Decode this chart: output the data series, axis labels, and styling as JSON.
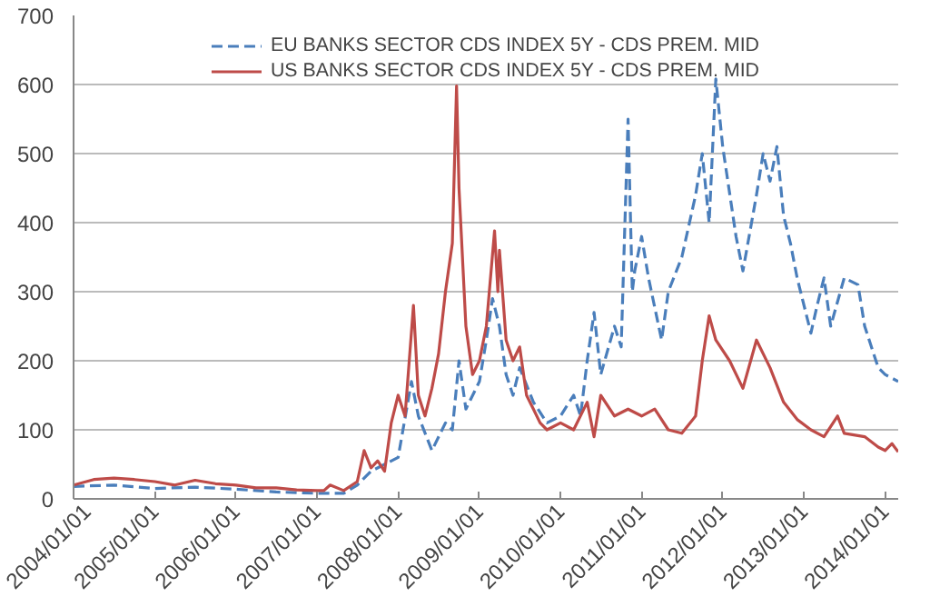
{
  "chart_data": {
    "type": "line",
    "ylim": [
      0,
      700
    ],
    "yticks": [
      0,
      100,
      200,
      300,
      400,
      500,
      600,
      700
    ],
    "xlim": [
      "2004-01-01",
      "2014-03-01"
    ],
    "xticks": [
      {
        "value": "2004-01-01",
        "label": "2004/01/01"
      },
      {
        "value": "2005-01-01",
        "label": "2005/01/01"
      },
      {
        "value": "2006-01-01",
        "label": "2006/01/01"
      },
      {
        "value": "2007-01-01",
        "label": "2007/01/01"
      },
      {
        "value": "2008-01-01",
        "label": "2008/01/01"
      },
      {
        "value": "2009-01-01",
        "label": "2009/01/01"
      },
      {
        "value": "2010-01-01",
        "label": "2010/01/01"
      },
      {
        "value": "2011-01-01",
        "label": "2011/01/01"
      },
      {
        "value": "2012-01-01",
        "label": "2012/01/01"
      },
      {
        "value": "2013-01-01",
        "label": "2013/01/01"
      },
      {
        "value": "2014-01-01",
        "label": "2014/01/01"
      }
    ],
    "grid": "y",
    "legend": "top",
    "marker": "none",
    "series": [
      {
        "name": "EU BANKS SECTOR CDS INDEX 5Y - CDS PREM. MID",
        "color": "#4a7ebb",
        "line_style": "dashed",
        "x": [
          "2004-01",
          "2004-07",
          "2005-01",
          "2005-07",
          "2006-01",
          "2006-07",
          "2007-01",
          "2007-05",
          "2007-07",
          "2007-09",
          "2007-11",
          "2008-01",
          "2008-03",
          "2008-04",
          "2008-06",
          "2008-08",
          "2008-09",
          "2008-10",
          "2008-11",
          "2009-01",
          "2009-02",
          "2009-03",
          "2009-04",
          "2009-05",
          "2009-06",
          "2009-07",
          "2009-09",
          "2009-11",
          "2010-01",
          "2010-03",
          "2010-04",
          "2010-05",
          "2010-06",
          "2010-07",
          "2010-09",
          "2010-10",
          "2010-11",
          "2010-11-20",
          "2010-12",
          "2011-01",
          "2011-02",
          "2011-04",
          "2011-05",
          "2011-07",
          "2011-09",
          "2011-10",
          "2011-11",
          "2011-12",
          "2012-01",
          "2012-03",
          "2012-04",
          "2012-06",
          "2012-07",
          "2012-08",
          "2012-09",
          "2012-10",
          "2012-11",
          "2012-12",
          "2013-02",
          "2013-03",
          "2013-04",
          "2013-05",
          "2013-07",
          "2013-09",
          "2013-10",
          "2013-12",
          "2014-01",
          "2014-03"
        ],
        "values": [
          18,
          20,
          15,
          17,
          14,
          10,
          8,
          8,
          20,
          40,
          50,
          60,
          170,
          120,
          70,
          110,
          100,
          200,
          130,
          170,
          230,
          290,
          250,
          180,
          150,
          190,
          140,
          110,
          120,
          150,
          120,
          200,
          270,
          180,
          250,
          220,
          550,
          300,
          330,
          380,
          320,
          230,
          300,
          350,
          440,
          500,
          400,
          608,
          510,
          380,
          330,
          440,
          500,
          460,
          510,
          410,
          370,
          320,
          240,
          280,
          320,
          250,
          320,
          310,
          250,
          190,
          180,
          170
        ]
      },
      {
        "name": "US BANKS SECTOR CDS INDEX 5Y - CDS PREM. MID",
        "color": "#be4b48",
        "line_style": "solid",
        "x": [
          "2004-01",
          "2004-04",
          "2004-07",
          "2004-10",
          "2005-01",
          "2005-04",
          "2005-07",
          "2005-10",
          "2006-01",
          "2006-04",
          "2006-07",
          "2006-10",
          "2007-01",
          "2007-02",
          "2007-03",
          "2007-05",
          "2007-07",
          "2007-08",
          "2007-09",
          "2007-10",
          "2007-11",
          "2007-12",
          "2008-01",
          "2008-02",
          "2008-03-10",
          "2008-04",
          "2008-05",
          "2008-06",
          "2008-07",
          "2008-08",
          "2008-09",
          "2008-09-20",
          "2008-10",
          "2008-11",
          "2008-12",
          "2009-01",
          "2009-02",
          "2009-03-10",
          "2009-03-25",
          "2009-04",
          "2009-05",
          "2009-06",
          "2009-07",
          "2009-08",
          "2009-09",
          "2009-10",
          "2009-11",
          "2010-01",
          "2010-03",
          "2010-05",
          "2010-06",
          "2010-07",
          "2010-09",
          "2010-11",
          "2011-01",
          "2011-03",
          "2011-05",
          "2011-07",
          "2011-09",
          "2011-10",
          "2011-11",
          "2011-12",
          "2012-02",
          "2012-04",
          "2012-06",
          "2012-08",
          "2012-10",
          "2012-12",
          "2013-02",
          "2013-04",
          "2013-06",
          "2013-07",
          "2013-10",
          "2013-12",
          "2014-01",
          "2014-02",
          "2014-03"
        ],
        "values": [
          20,
          28,
          30,
          28,
          25,
          20,
          27,
          22,
          20,
          16,
          16,
          13,
          12,
          12,
          20,
          12,
          25,
          70,
          45,
          55,
          40,
          110,
          150,
          120,
          280,
          150,
          120,
          160,
          210,
          300,
          370,
          598,
          450,
          250,
          180,
          200,
          250,
          388,
          300,
          360,
          230,
          200,
          220,
          150,
          130,
          110,
          100,
          110,
          100,
          140,
          90,
          150,
          120,
          130,
          120,
          130,
          100,
          95,
          120,
          200,
          265,
          230,
          200,
          160,
          230,
          190,
          140,
          115,
          100,
          90,
          120,
          95,
          90,
          75,
          70,
          80,
          68
        ]
      }
    ]
  }
}
